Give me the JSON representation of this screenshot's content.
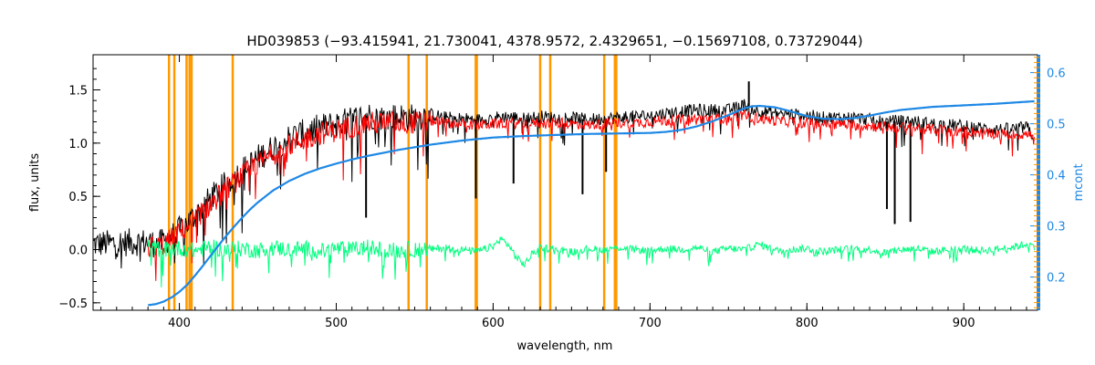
{
  "chart_data": {
    "type": "line",
    "title": "HD039853    (−93.415941, 21.730041, 4378.9572, 2.4329651, −0.15697108, 0.73729044)",
    "xlabel": "wavelength, nm",
    "ylabel": "flux, units",
    "y2label": "mcont",
    "xlim": [
      345,
      947
    ],
    "ylim": [
      -0.57,
      1.83
    ],
    "y2lim": [
      0.135,
      0.635
    ],
    "x_ticks": [
      400,
      500,
      600,
      700,
      800,
      900
    ],
    "y_ticks": [
      -0.5,
      0.0,
      0.5,
      1.0,
      1.5
    ],
    "y2_ticks": [
      0.2,
      0.3,
      0.4,
      0.5,
      0.6
    ],
    "x_tick_labels": [
      "400",
      "500",
      "600",
      "700",
      "800",
      "900"
    ],
    "y_tick_labels": [
      "−0.5",
      "0.0",
      "0.5",
      "1.0",
      "1.5"
    ],
    "y2_tick_labels": [
      "0.2",
      "0.3",
      "0.4",
      "0.5",
      "0.6"
    ],
    "grid": false,
    "legend": "none",
    "colors": {
      "observed": "#000000",
      "model": "#ff0000",
      "residual": "#00ff7f",
      "continuum": "#1e88e5",
      "masks": "#ff9900",
      "axis_right": "#1e88e5"
    },
    "series": [
      {
        "id": "observed",
        "axis": "left",
        "x": [
          345,
          360,
          370,
          380,
          385,
          390,
          395,
          400,
          405,
          410,
          415,
          420,
          425,
          430,
          435,
          440,
          445,
          450,
          460,
          470,
          480,
          490,
          500,
          510,
          520,
          530,
          540,
          550,
          560,
          570,
          580,
          590,
          600,
          610,
          620,
          630,
          640,
          650,
          660,
          670,
          680,
          690,
          700,
          710,
          720,
          730,
          740,
          750,
          760,
          770,
          780,
          790,
          800,
          810,
          820,
          830,
          840,
          850,
          860,
          870,
          880,
          890,
          900,
          910,
          920,
          930,
          940,
          945
        ],
        "y": [
          0.05,
          0.06,
          0.07,
          0.07,
          0.05,
          0.07,
          0.12,
          0.18,
          0.25,
          0.32,
          0.4,
          0.48,
          0.55,
          0.62,
          0.68,
          0.74,
          0.8,
          0.86,
          0.96,
          1.05,
          1.1,
          1.15,
          1.18,
          1.22,
          1.26,
          1.24,
          1.25,
          1.24,
          1.27,
          1.24,
          1.23,
          1.22,
          1.24,
          1.25,
          1.23,
          1.25,
          1.24,
          1.24,
          1.22,
          1.23,
          1.24,
          1.25,
          1.26,
          1.28,
          1.3,
          1.31,
          1.31,
          1.31,
          1.36,
          1.3,
          1.28,
          1.27,
          1.26,
          1.24,
          1.24,
          1.24,
          1.22,
          1.2,
          1.21,
          1.2,
          1.18,
          1.17,
          1.16,
          1.14,
          1.13,
          1.13,
          1.15,
          1.06
        ]
      },
      {
        "id": "model",
        "axis": "left",
        "x": [
          380,
          385,
          390,
          395,
          400,
          405,
          410,
          415,
          420,
          425,
          430,
          435,
          440,
          445,
          450,
          460,
          470,
          480,
          490,
          500,
          510,
          520,
          530,
          540,
          550,
          560,
          570,
          580,
          590,
          600,
          610,
          620,
          630,
          640,
          650,
          660,
          670,
          680,
          690,
          700,
          710,
          720,
          730,
          740,
          750,
          760,
          770,
          780,
          790,
          800,
          810,
          820,
          830,
          840,
          850,
          860,
          870,
          880,
          890,
          900,
          910,
          920,
          930,
          940,
          945
        ],
        "y": [
          0.02,
          0.03,
          0.05,
          0.1,
          0.16,
          0.22,
          0.29,
          0.36,
          0.43,
          0.5,
          0.57,
          0.63,
          0.69,
          0.75,
          0.8,
          0.9,
          0.98,
          1.04,
          1.09,
          1.12,
          1.16,
          1.19,
          1.19,
          1.2,
          1.19,
          1.21,
          1.19,
          1.18,
          1.17,
          1.18,
          1.19,
          1.18,
          1.19,
          1.19,
          1.18,
          1.17,
          1.18,
          1.19,
          1.19,
          1.2,
          1.21,
          1.22,
          1.23,
          1.23,
          1.24,
          1.26,
          1.23,
          1.21,
          1.2,
          1.19,
          1.18,
          1.18,
          1.17,
          1.16,
          1.15,
          1.15,
          1.14,
          1.13,
          1.12,
          1.11,
          1.1,
          1.09,
          1.08,
          1.08,
          1.07
        ]
      },
      {
        "id": "residual",
        "axis": "left",
        "x": [
          380,
          390,
          400,
          410,
          420,
          430,
          440,
          450,
          460,
          470,
          480,
          490,
          500,
          510,
          520,
          530,
          540,
          550,
          560,
          570,
          580,
          590,
          600,
          605,
          610,
          615,
          620,
          625,
          630,
          640,
          650,
          660,
          670,
          680,
          690,
          700,
          710,
          720,
          730,
          740,
          750,
          760,
          770,
          780,
          790,
          800,
          810,
          820,
          830,
          840,
          850,
          860,
          870,
          880,
          890,
          900,
          910,
          920,
          930,
          940,
          945
        ],
        "y": [
          0.02,
          0.0,
          0.01,
          -0.01,
          0.02,
          0.0,
          0.01,
          -0.01,
          0.02,
          0.0,
          0.01,
          -0.02,
          0.01,
          0.0,
          0.02,
          0.0,
          -0.01,
          0.01,
          0.0,
          0.02,
          0.0,
          -0.02,
          0.03,
          0.1,
          0.04,
          -0.08,
          -0.14,
          -0.04,
          0.02,
          0.0,
          -0.02,
          0.01,
          0.0,
          0.02,
          0.0,
          -0.01,
          0.01,
          0.0,
          0.02,
          -0.02,
          0.01,
          0.0,
          0.05,
          -0.01,
          0.0,
          0.01,
          -0.02,
          0.0,
          0.01,
          0.0,
          -0.03,
          0.0,
          0.01,
          -0.02,
          0.0,
          0.01,
          -0.01,
          0.0,
          0.02,
          0.05,
          0.03
        ]
      },
      {
        "id": "continuum",
        "axis": "right",
        "x": [
          380,
          385,
          390,
          395,
          400,
          405,
          410,
          415,
          420,
          425,
          430,
          435,
          440,
          445,
          450,
          460,
          470,
          480,
          490,
          500,
          510,
          520,
          530,
          540,
          550,
          560,
          570,
          580,
          590,
          600,
          620,
          640,
          660,
          680,
          700,
          710,
          720,
          730,
          740,
          750,
          760,
          765,
          770,
          780,
          790,
          800,
          810,
          820,
          830,
          840,
          850,
          860,
          880,
          900,
          920,
          945
        ],
        "y": [
          0.145,
          0.147,
          0.152,
          0.16,
          0.171,
          0.185,
          0.203,
          0.222,
          0.242,
          0.262,
          0.281,
          0.299,
          0.316,
          0.332,
          0.346,
          0.37,
          0.388,
          0.402,
          0.413,
          0.422,
          0.43,
          0.437,
          0.443,
          0.449,
          0.454,
          0.459,
          0.463,
          0.467,
          0.47,
          0.473,
          0.476,
          0.478,
          0.48,
          0.481,
          0.482,
          0.484,
          0.488,
          0.495,
          0.505,
          0.517,
          0.53,
          0.534,
          0.535,
          0.532,
          0.524,
          0.515,
          0.51,
          0.509,
          0.511,
          0.516,
          0.522,
          0.527,
          0.533,
          0.536,
          0.539,
          0.544
        ]
      }
    ],
    "spikes": [
      {
        "x": 519,
        "y": 0.3
      },
      {
        "x": 589,
        "y": 0.48
      },
      {
        "x": 657,
        "y": 0.52
      },
      {
        "x": 613,
        "y": 0.62
      },
      {
        "x": 672,
        "y": 0.73
      },
      {
        "x": 851,
        "y": 0.38
      },
      {
        "x": 856,
        "y": 0.24
      },
      {
        "x": 866,
        "y": 0.26
      },
      {
        "x": 763,
        "y": 1.58
      }
    ],
    "mask_lines": [
      393.4,
      396.8,
      404.6,
      406.5,
      407.8,
      434.0,
      546.1,
      557.7,
      588.9,
      589.6,
      630.0,
      636.4,
      670.8,
      677.6,
      678.5
    ]
  }
}
